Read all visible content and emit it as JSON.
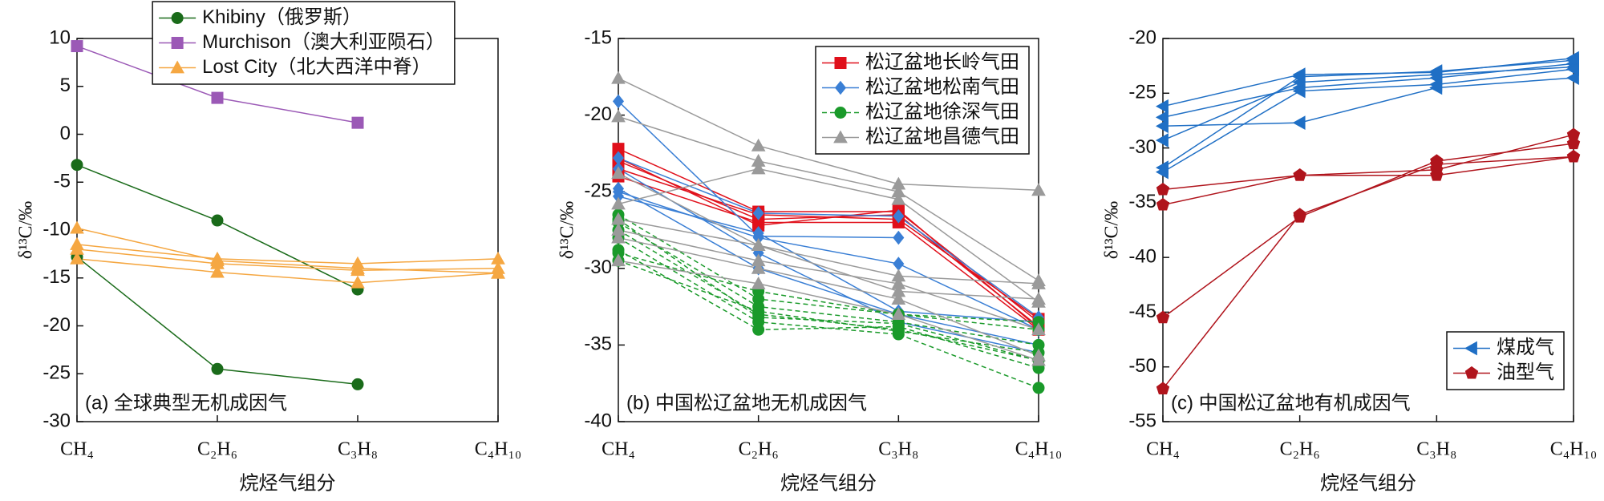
{
  "chart_data": [
    {
      "type": "line",
      "annotation": "(a) 全球典型无机成因气",
      "x_label": "烷烃气组分",
      "y_label": "δ¹³C/‰",
      "categories": [
        "CH₄",
        "C₂H₆",
        "C₃H₈",
        "C₄H₁₀"
      ],
      "ylim": [
        -30,
        10
      ],
      "yticks": [
        -30,
        -25,
        -20,
        -15,
        -10,
        -5,
        0,
        5,
        10
      ],
      "legend": "upper center",
      "series": [
        {
          "name": "Khibiny（俄罗斯）",
          "color": "#1a6b1a",
          "marker": "circle",
          "dash": false,
          "lines": [
            [
              -3.2,
              -9.0,
              -16.2,
              null
            ],
            [
              -12.8,
              -24.5,
              -26.1,
              null
            ]
          ]
        },
        {
          "name": "Murchison（澳大利亚陨石）",
          "color": "#9b59b6",
          "marker": "square",
          "dash": false,
          "lines": [
            [
              9.2,
              3.8,
              1.2,
              null
            ]
          ]
        },
        {
          "name": "Lost City（北大西洋中脊）",
          "color": "#f5a742",
          "marker": "triangle",
          "dash": false,
          "lines": [
            [
              -9.8,
              -13.2,
              -14.0,
              -14.5
            ],
            [
              -11.5,
              -13.0,
              -13.5,
              -13.0
            ],
            [
              -12.0,
              -13.5,
              -14.2,
              -14.0
            ],
            [
              -13.0,
              -14.4,
              -15.5,
              -14.5
            ]
          ]
        }
      ]
    },
    {
      "type": "line",
      "annotation": "(b) 中国松辽盆地无机成因气",
      "x_label": "烷烃气组分",
      "y_label": "δ¹³C/‰",
      "categories": [
        "CH₄",
        "C₂H₆",
        "C₃H₈",
        "C₄H₁₀"
      ],
      "ylim": [
        -40,
        -15
      ],
      "yticks": [
        -40,
        -35,
        -30,
        -25,
        -20,
        -15
      ],
      "legend": "upper right",
      "series": [
        {
          "name": "松辽盆地长岭气田",
          "color": "#e0101b",
          "marker": "square",
          "dash": false,
          "lines": [
            [
              -22.2,
              -26.3,
              -26.3,
              -33.5
            ],
            [
              -23.0,
              -26.8,
              -26.5,
              -33.8
            ],
            [
              -24.0,
              -27.0,
              -27.0,
              -34.0
            ],
            [
              -23.5,
              -26.5,
              -26.8,
              -33.3
            ],
            [
              -22.8,
              -27.2,
              -26.2,
              -33.9
            ]
          ]
        },
        {
          "name": "松辽盆地松南气田",
          "color": "#3a7fd5",
          "marker": "diamond",
          "dash": false,
          "lines": [
            [
              -19.1,
              -27.9,
              -28.0,
              null
            ],
            [
              -22.8,
              -26.4,
              -26.6,
              -33.2
            ],
            [
              -24.8,
              -30.0,
              -33.0,
              -35.0
            ],
            [
              -25.0,
              -28.0,
              -29.7,
              -34.0
            ],
            [
              -23.5,
              -29.0,
              -33.5,
              -35.5
            ],
            [
              -25.3,
              -27.7,
              -32.8,
              -33.5
            ]
          ]
        },
        {
          "name": "松辽盆地徐深气田",
          "color": "#1a9a2a",
          "marker": "circle",
          "dash": true,
          "lines": [
            [
              -26.5,
              -32.0,
              -33.0,
              -33.5
            ],
            [
              -27.0,
              -32.5,
              -33.5,
              -35.0
            ],
            [
              -27.5,
              -33.0,
              -34.0,
              -36.0
            ],
            [
              -28.0,
              -33.5,
              -34.3,
              -37.8
            ],
            [
              -28.8,
              -34.0,
              -33.8,
              -36.5
            ],
            [
              -29.0,
              -31.5,
              -33.0,
              -34.0
            ],
            [
              -29.5,
              -32.8,
              -34.1,
              -35.5
            ],
            [
              -26.8,
              -33.2,
              -33.6,
              -36.0
            ]
          ]
        },
        {
          "name": "松辽盆地昌德气田",
          "color": "#9a9a9a",
          "marker": "triangle",
          "dash": false,
          "lines": [
            [
              -17.6,
              -22.0,
              -24.5,
              -24.9
            ],
            [
              -20.1,
              -23.0,
              -25.0,
              -30.8
            ],
            [
              -25.8,
              -23.5,
              -25.5,
              -32.2
            ],
            [
              -26.8,
              -28.5,
              -30.5,
              -31.0
            ],
            [
              -27.5,
              -29.5,
              -31.0,
              -34.0
            ],
            [
              -28.0,
              -30.0,
              -32.0,
              -35.7
            ],
            [
              -29.5,
              -31.0,
              -33.0,
              -36.0
            ],
            [
              -23.8,
              -28.5,
              -31.5,
              -32.0
            ]
          ]
        }
      ]
    },
    {
      "type": "line",
      "annotation": "(c) 中国松辽盆地有机成因气",
      "x_label": "烷烃气组分",
      "y_label": "δ¹³C/‰",
      "categories": [
        "CH₄",
        "C₂H₆",
        "C₃H₈",
        "C₄H₁₀"
      ],
      "ylim": [
        -55,
        -20
      ],
      "yticks": [
        -55,
        -50,
        -45,
        -40,
        -35,
        -30,
        -25,
        -20
      ],
      "legend": "lower right",
      "series": [
        {
          "name": "煤成气",
          "color": "#1f6fc5",
          "marker": "triangle-left",
          "dash": false,
          "lines": [
            [
              -26.2,
              -23.3,
              -23.1,
              -21.8
            ],
            [
              -27.2,
              -24.5,
              -23.6,
              -22.3
            ],
            [
              -28.0,
              -27.7,
              -24.5,
              -23.6
            ],
            [
              -29.3,
              -24.0,
              -23.3,
              -22.6
            ],
            [
              -31.8,
              -23.5,
              -23.0,
              -22.0
            ],
            [
              -32.2,
              -24.8,
              -24.2,
              -22.8
            ]
          ]
        },
        {
          "name": "油型气",
          "color": "#b0141c",
          "marker": "pentagon",
          "dash": false,
          "lines": [
            [
              -33.8,
              -32.5,
              -32.5,
              -30.8
            ],
            [
              -35.2,
              -32.5,
              -32.0,
              -28.8
            ],
            [
              -45.5,
              -36.3,
              -31.2,
              -29.6
            ],
            [
              -52.0,
              -36.1,
              -31.5,
              -30.8
            ]
          ]
        }
      ]
    }
  ]
}
